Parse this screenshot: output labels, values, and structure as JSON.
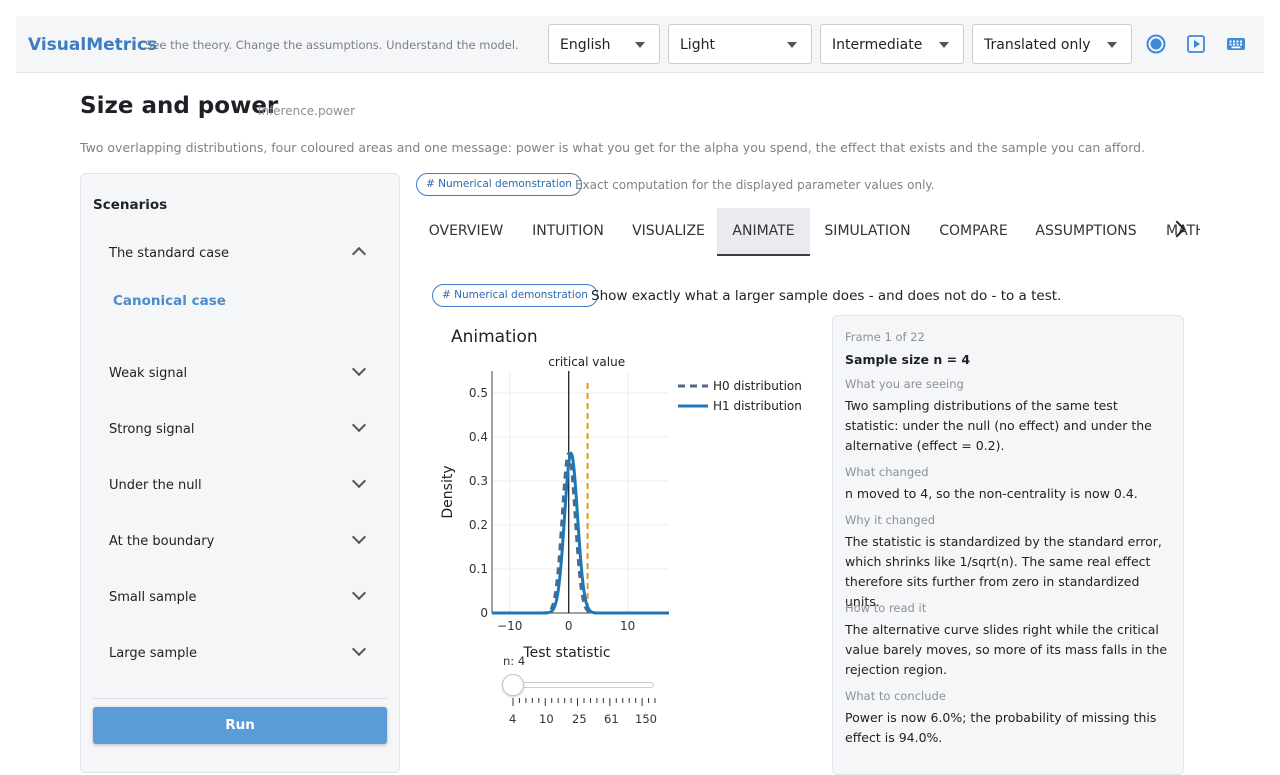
{
  "header": {
    "brand": "VisualMetrics",
    "tagline": "See the theory. Change the assumptions. Understand the model.",
    "selects": [
      {
        "name": "language",
        "value": "English"
      },
      {
        "name": "theme",
        "value": "Light"
      },
      {
        "name": "level",
        "value": "Intermediate"
      },
      {
        "name": "translation",
        "value": "Translated only"
      }
    ],
    "icons": [
      "record-icon",
      "play-icon",
      "keyboard-icon"
    ]
  },
  "page": {
    "title": "Size and power",
    "id": "inference.power",
    "description": "Two overlapping distributions, four coloured areas and one message: power is what you get for the alpha you spend, the effect that exists and the sample you can afford."
  },
  "badges": {
    "top": {
      "label": "# Numerical demonstration",
      "note": "Exact computation for the displayed parameter values only."
    },
    "animate": {
      "label": "# Numerical demonstration",
      "text": "Show exactly what a larger sample does - and does not do - to a test."
    }
  },
  "sidebar": {
    "title": "Scenarios",
    "items": [
      {
        "label": "The standard case",
        "expanded": true
      },
      {
        "label": "Weak signal"
      },
      {
        "label": "Strong signal"
      },
      {
        "label": "Under the null"
      },
      {
        "label": "At the boundary"
      },
      {
        "label": "Small sample"
      },
      {
        "label": "Large sample"
      }
    ],
    "sub_item": "Canonical case",
    "run_label": "Run"
  },
  "tabs": [
    "OVERVIEW",
    "INTUITION",
    "VISUALIZE",
    "ANIMATE",
    "SIMULATION",
    "COMPARE",
    "ASSUMPTIONS",
    "MATH"
  ],
  "active_tab": "ANIMATE",
  "animation": {
    "title": "Animation",
    "slider_label": "n: 4",
    "slider_value": 4,
    "slider_ticks": [
      "4",
      "10",
      "25",
      "61",
      "150"
    ]
  },
  "chart_data": {
    "type": "line",
    "title": "",
    "xlabel": "Test statistic",
    "ylabel": "Density",
    "xlim": [
      -13,
      17
    ],
    "ylim": [
      0,
      0.55
    ],
    "x_ticks": [
      "−10",
      "0",
      "10"
    ],
    "y_ticks": [
      "0",
      "0.1",
      "0.2",
      "0.3",
      "0.4",
      "0.5"
    ],
    "annotations": [
      {
        "text": "critical value",
        "x": 0
      }
    ],
    "critical_value": 3.2,
    "colors": {
      "h0": "#4b6a8c",
      "h1": "#1f77b4",
      "critical": "#e39c12",
      "zero_line": "#222222"
    },
    "series": [
      {
        "name": "H0 distribution",
        "style": "dashed",
        "mean": 0,
        "sd": 1.1
      },
      {
        "name": "H1 distribution",
        "style": "solid",
        "mean": 0.4,
        "sd": 1.1
      }
    ],
    "legend_position": "right"
  },
  "panel": {
    "frame": "Frame 1 of 22",
    "headline": "Sample size n = 4",
    "sections": [
      {
        "label": "What you are seeing",
        "text": "Two sampling distributions of the same test statistic: under the null (no effect) and under the alternative (effect = 0.2)."
      },
      {
        "label": "What changed",
        "text": "n moved to 4, so the non-centrality is now 0.4."
      },
      {
        "label": "Why it changed",
        "text": "The statistic is standardized by the standard error, which shrinks like 1/sqrt(n). The same real effect therefore sits further from zero in standardized units."
      },
      {
        "label": "How to read it",
        "text": "The alternative curve slides right while the critical value barely moves, so more of its mass falls in the rejection region."
      },
      {
        "label": "What to conclude",
        "text": "Power is now 6.0%; the probability of missing this effect is 94.0%."
      }
    ]
  }
}
